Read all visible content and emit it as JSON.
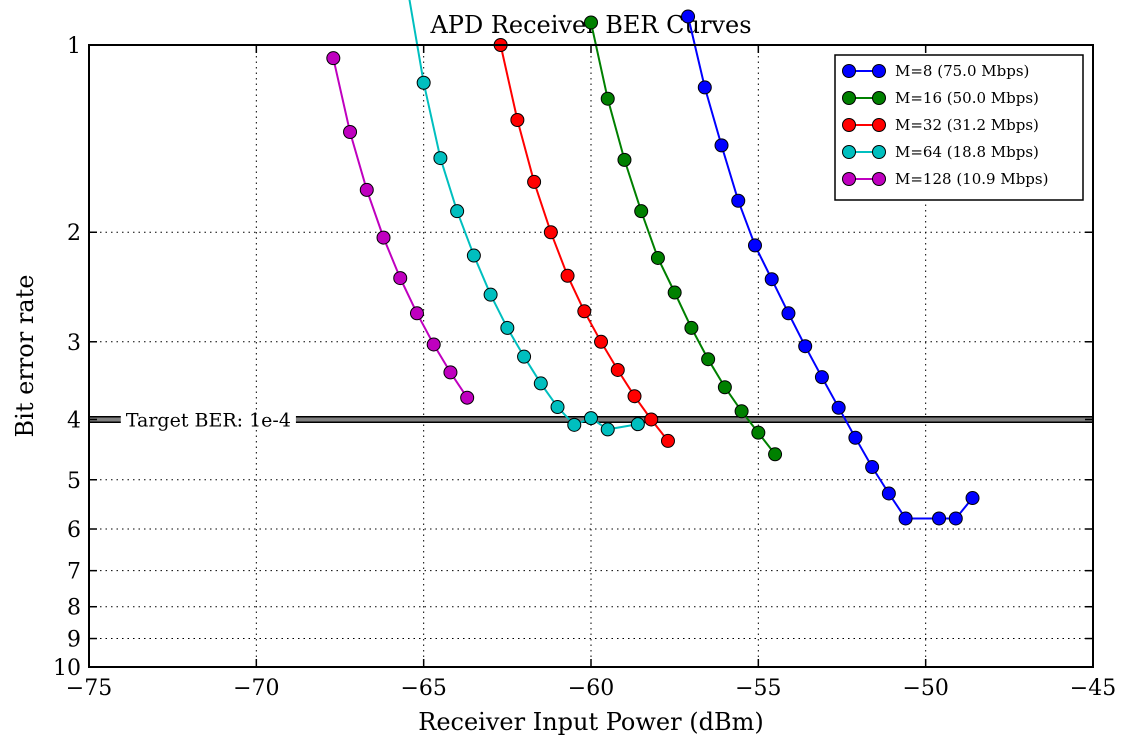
{
  "chart_data": {
    "type": "line",
    "title": "APD Receiver BER Curves",
    "xlabel": "Receiver Input Power (dBm)",
    "ylabel": "Bit error rate",
    "xlim": [
      -75,
      -45
    ],
    "ylim": [
      1,
      10
    ],
    "x_ticks": [
      -75,
      -70,
      -65,
      -60,
      -55,
      -50,
      -45
    ],
    "x_tick_labels": [
      "−75",
      "−70",
      "−65",
      "−60",
      "−55",
      "−50",
      "−45"
    ],
    "y_ticks": [
      1,
      2,
      3,
      4,
      5,
      6,
      7,
      8,
      9,
      10
    ],
    "y_tick_labels": [
      "1",
      "2",
      "3",
      "4",
      "5",
      "6",
      "7",
      "8",
      "9",
      "10"
    ],
    "grid": true,
    "legend_position": "top-right",
    "reference_line": {
      "y": 4,
      "label": "Target BER: 1e-4",
      "color": "#808080"
    },
    "series": [
      {
        "name": "M=8 (75.0 Mbps)",
        "color": "#0000ff",
        "x": [
          -57.1,
          -56.6,
          -56.1,
          -55.6,
          -55.1,
          -54.6,
          -54.1,
          -53.6,
          -53.1,
          -52.6,
          -52.1,
          -51.6,
          -51.1,
          -50.6,
          -49.6,
          -49.1,
          -48.6
        ],
        "y": [
          0.9,
          1.17,
          1.45,
          1.78,
          2.1,
          2.38,
          2.7,
          3.05,
          3.42,
          3.83,
          4.28,
          4.77,
          5.26,
          5.77,
          5.77,
          5.77,
          5.35
        ]
      },
      {
        "name": "M=16 (50.0 Mbps)",
        "color": "#008000",
        "x": [
          -60,
          -59.5,
          -59,
          -58.5,
          -58,
          -57.5,
          -57,
          -56.5,
          -56,
          -55.5,
          -55,
          -54.5
        ],
        "y": [
          0.92,
          1.22,
          1.53,
          1.85,
          2.2,
          2.5,
          2.85,
          3.2,
          3.55,
          3.88,
          4.2,
          4.55
        ]
      },
      {
        "name": "M=32 (31.2 Mbps)",
        "color": "#ff0000",
        "x": [
          -62.7,
          -62.2,
          -61.7,
          -61.2,
          -60.7,
          -60.2,
          -59.7,
          -59.2,
          -58.7,
          -58.2,
          -57.7
        ],
        "y": [
          1.0,
          1.32,
          1.66,
          2.0,
          2.35,
          2.68,
          3.0,
          3.33,
          3.67,
          4.0,
          4.33
        ]
      },
      {
        "name": "M=64 (18.8 Mbps)",
        "color": "#00bfbf",
        "x": [
          -65.5,
          -65,
          -64.5,
          -64,
          -63.5,
          -63,
          -62.5,
          -62,
          -61.5,
          -61,
          -60.5,
          -60,
          -59.5,
          -58.6
        ],
        "y": [
          0.8,
          1.15,
          1.52,
          1.85,
          2.18,
          2.52,
          2.85,
          3.17,
          3.5,
          3.82,
          4.08,
          3.98,
          4.15,
          4.07
        ]
      },
      {
        "name": "M=128 (10.9 Mbps)",
        "color": "#bf00bf",
        "x": [
          -67.7,
          -67.2,
          -66.7,
          -66.2,
          -65.7,
          -65.2,
          -64.7,
          -64.2,
          -63.7
        ],
        "y": [
          1.05,
          1.38,
          1.71,
          2.04,
          2.37,
          2.7,
          3.03,
          3.36,
          3.69
        ]
      }
    ]
  }
}
